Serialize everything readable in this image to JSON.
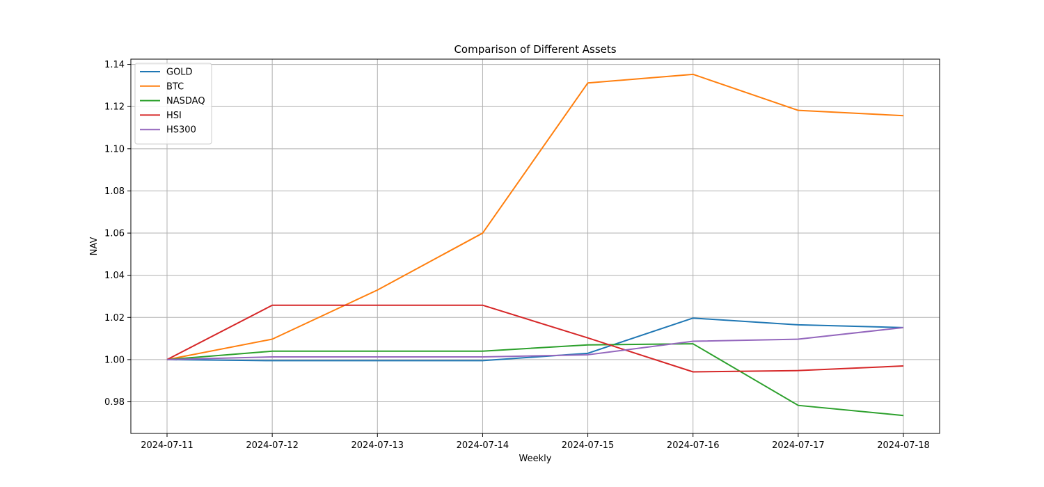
{
  "chart_data": {
    "type": "line",
    "title": "Comparison of Different Assets",
    "xlabel": "Weekly",
    "ylabel": "NAV",
    "x": [
      "2024-07-11",
      "2024-07-12",
      "2024-07-13",
      "2024-07-14",
      "2024-07-15",
      "2024-07-16",
      "2024-07-17",
      "2024-07-18"
    ],
    "ylim": [
      0.965,
      1.1425
    ],
    "yticks": [
      "0.98",
      "1.00",
      "1.02",
      "1.04",
      "1.06",
      "1.08",
      "1.10",
      "1.12",
      "1.14"
    ],
    "grid": true,
    "legend_position": "top-left",
    "series": [
      {
        "name": "GOLD",
        "color": "#1f77b4",
        "values": [
          1.0,
          0.9995,
          0.9995,
          0.9995,
          1.003,
          1.0197,
          1.0165,
          1.0152
        ]
      },
      {
        "name": "BTC",
        "color": "#ff7f0e",
        "values": [
          1.0,
          1.0097,
          1.033,
          1.06,
          1.1312,
          1.1353,
          1.1182,
          1.1157
        ]
      },
      {
        "name": "NASDAQ",
        "color": "#2ca02c",
        "values": [
          1.0,
          1.004,
          1.004,
          1.004,
          1.007,
          1.0075,
          0.9783,
          0.9735
        ]
      },
      {
        "name": "HSI",
        "color": "#d62728",
        "values": [
          1.0,
          1.0258,
          1.0258,
          1.0258,
          1.0103,
          0.9942,
          0.9948,
          0.997
        ]
      },
      {
        "name": "HS300",
        "color": "#9467bd",
        "values": [
          1.0,
          1.0013,
          1.0013,
          1.0013,
          1.0023,
          1.0087,
          1.0097,
          1.0152
        ]
      }
    ]
  }
}
